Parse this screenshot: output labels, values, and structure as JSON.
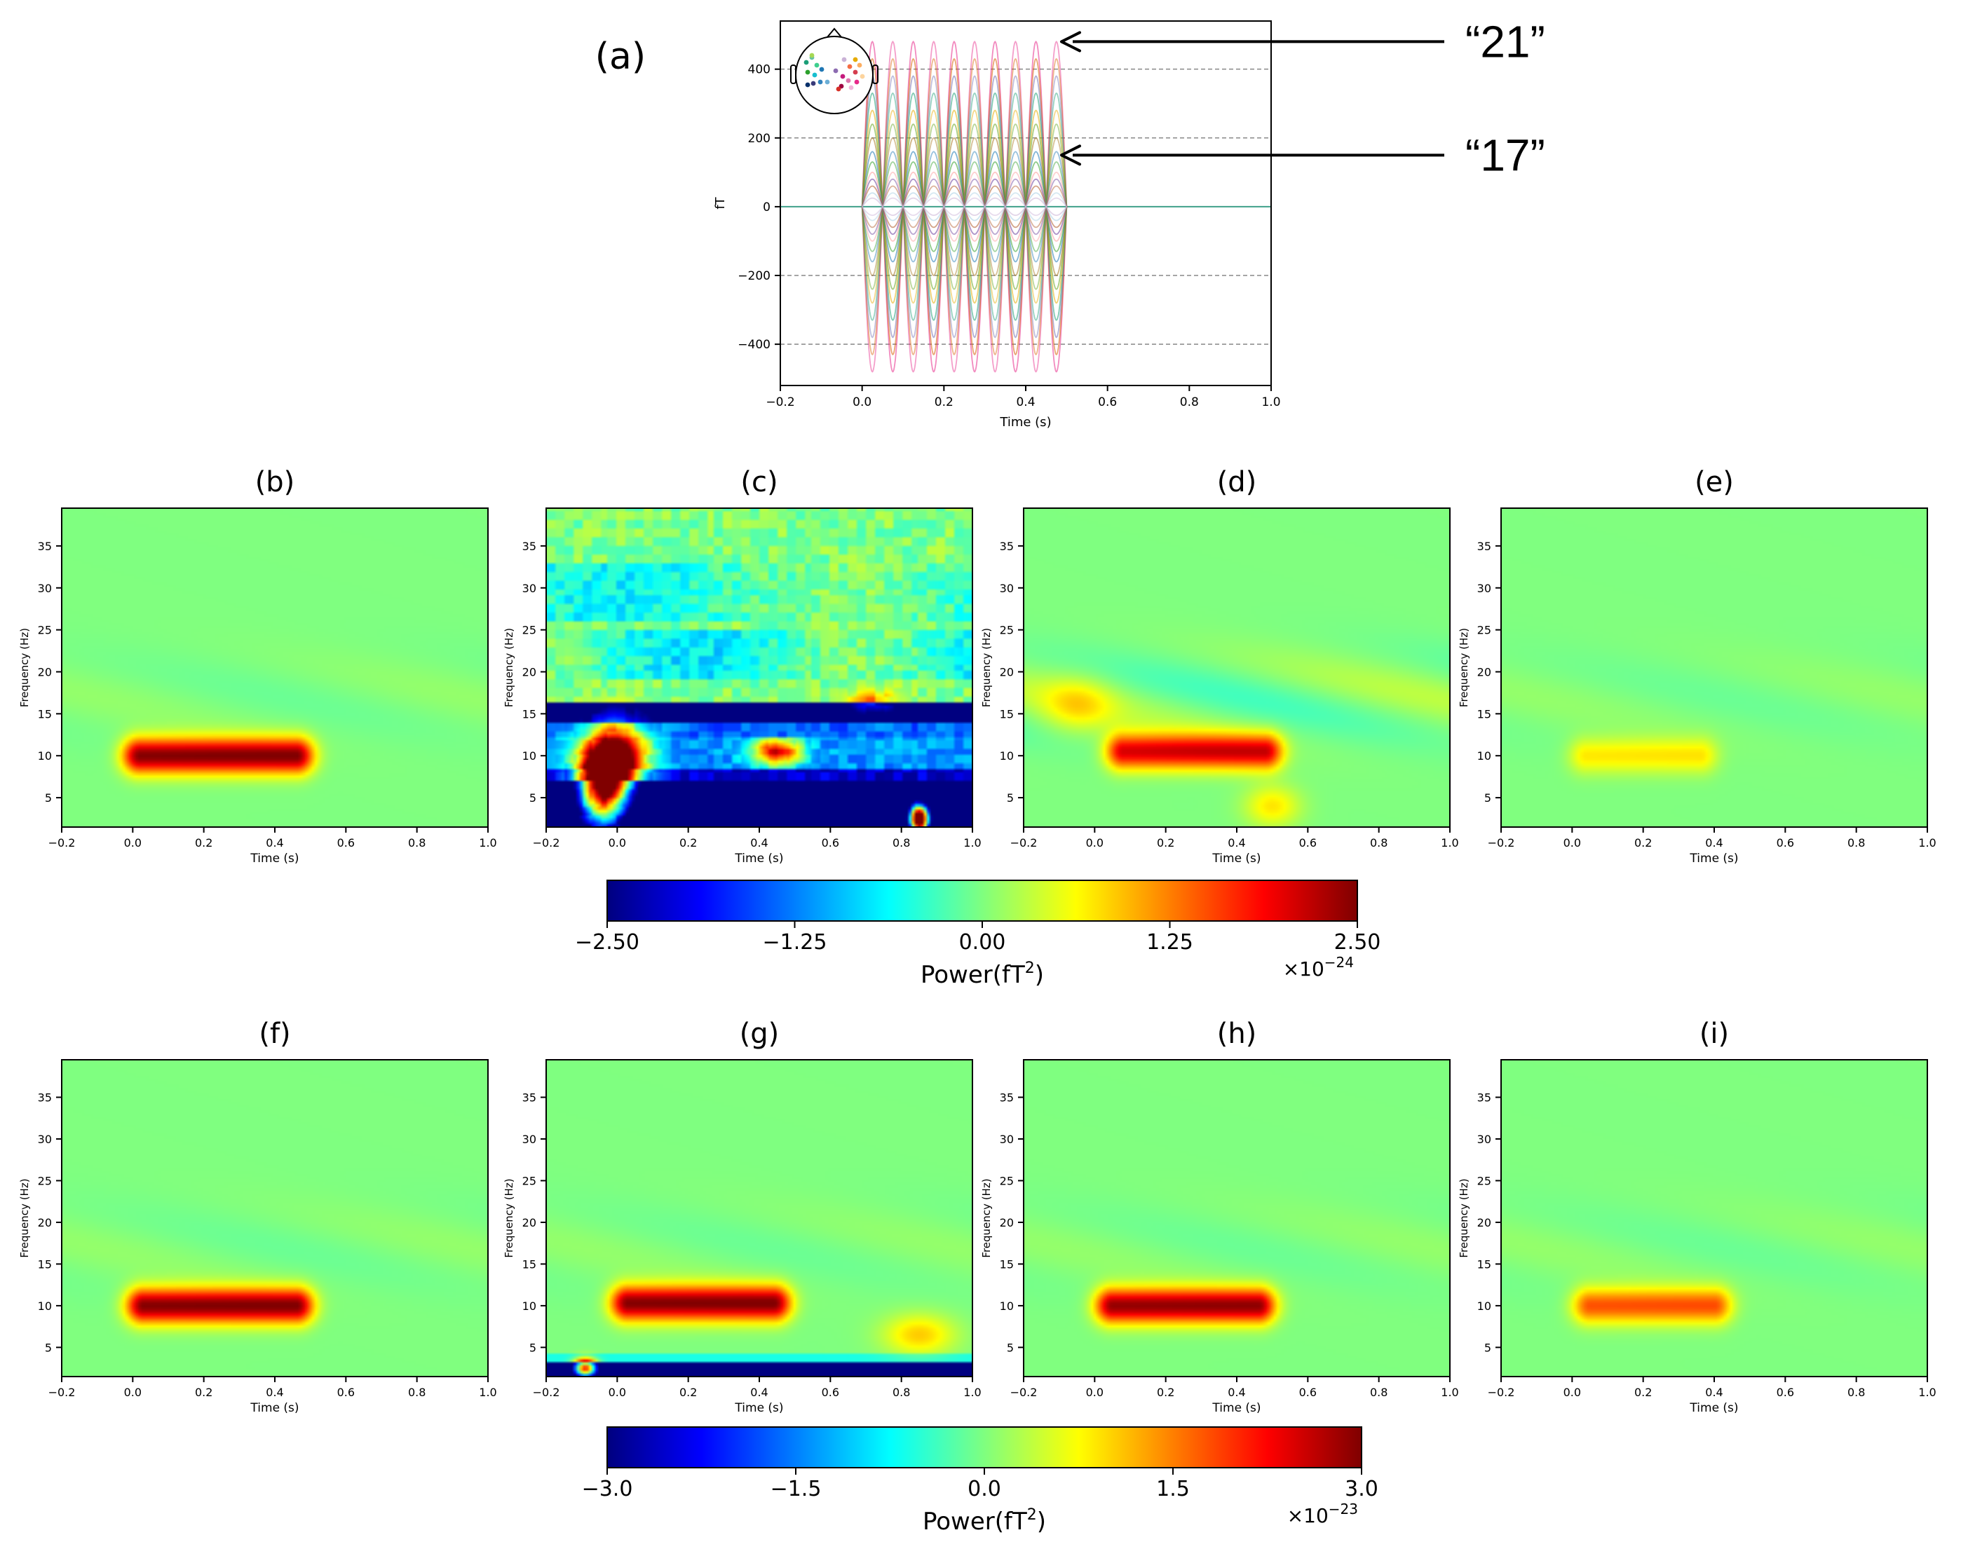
{
  "colors": {
    "jet": [
      "#00007f",
      "#0000ff",
      "#007fff",
      "#00ffff",
      "#7fff7f",
      "#ffff00",
      "#ff7f00",
      "#ff0000",
      "#7f0000"
    ],
    "signal": [
      "#e7298a",
      "#d95f02",
      "#7570b3",
      "#1b9e77",
      "#e6ab02",
      "#66a61e",
      "#a6761d",
      "#1f78b4",
      "#33a02c",
      "#fb9a99",
      "#6a3d9a",
      "#b15928",
      "#a6cee3",
      "#cab2d6"
    ],
    "arrow": "#000000"
  },
  "chart_data": [
    {
      "id": "a",
      "panel_label": "(a)",
      "type": "line",
      "description_free": true,
      "xlabel": "Time (s)",
      "ylabel": "fT",
      "xlim": [
        -0.2,
        1.0
      ],
      "ylim": [
        -520,
        540
      ],
      "xticks": [
        -0.2,
        0.0,
        0.2,
        0.4,
        0.6,
        0.8,
        1.0
      ],
      "xtick_labels": [
        "−0.2",
        "0.0",
        "0.2",
        "0.4",
        "0.6",
        "0.8",
        "1.0"
      ],
      "yticks": [
        -400,
        -200,
        0,
        200,
        400
      ],
      "ytick_labels": [
        "−400",
        "−200",
        "0",
        "200",
        "400"
      ],
      "grid_y": [
        -400,
        -200,
        200,
        400
      ],
      "signal": {
        "frequency_hz": 10,
        "t_start": 0.0,
        "t_end": 0.5,
        "amplitudes": [
          480,
          430,
          380,
          330,
          280,
          240,
          200,
          160,
          130,
          100,
          80,
          60,
          40,
          25
        ]
      },
      "annotations": [
        {
          "text": "“21”",
          "target_y": 480
        },
        {
          "text": "“17”",
          "target_y": 150
        }
      ]
    },
    {
      "id": "b",
      "panel_label": "(b)",
      "type": "heatmap",
      "row": 1,
      "xlabel": "Time (s)",
      "ylabel": "Frequency (Hz)",
      "xlim": [
        -0.2,
        1.0
      ],
      "ylim": [
        1.5,
        39.5
      ],
      "xticks": [
        -0.2,
        0.0,
        0.2,
        0.4,
        0.6,
        0.8,
        1.0
      ],
      "xtick_labels": [
        "−0.2",
        "0.0",
        "0.2",
        "0.4",
        "0.6",
        "0.8",
        "1.0"
      ],
      "yticks": [
        5,
        10,
        15,
        20,
        25,
        30,
        35
      ],
      "ytick_labels": [
        "5",
        "10",
        "15",
        "20",
        "25",
        "30",
        "35"
      ],
      "value_range": [
        -2.5e-24,
        2.5e-24
      ],
      "blobs": [
        {
          "t0": 0.02,
          "t1": 0.46,
          "f": 10,
          "peak": 2.5e-24
        }
      ]
    },
    {
      "id": "c",
      "panel_label": "(c)",
      "type": "heatmap",
      "row": 1,
      "xlabel": "Time (s)",
      "ylabel": "Frequency (Hz)",
      "xlim": [
        -0.2,
        1.0
      ],
      "ylim": [
        1.5,
        39.5
      ],
      "xticks": [
        -0.2,
        0.0,
        0.2,
        0.4,
        0.6,
        0.8,
        1.0
      ],
      "xtick_labels": [
        "−0.2",
        "0.0",
        "0.2",
        "0.4",
        "0.6",
        "0.8",
        "1.0"
      ],
      "yticks": [
        5,
        10,
        15,
        20,
        25,
        30,
        35
      ],
      "ytick_labels": [
        "5",
        "10",
        "15",
        "20",
        "25",
        "30",
        "35"
      ],
      "value_range": [
        -2.5e-24,
        2.5e-24
      ],
      "noisy": true
    },
    {
      "id": "d",
      "panel_label": "(d)",
      "type": "heatmap",
      "row": 1,
      "xlabel": "Time (s)",
      "ylabel": "Frequency (Hz)",
      "xlim": [
        -0.2,
        1.0
      ],
      "ylim": [
        1.5,
        39.5
      ],
      "xticks": [
        -0.2,
        0.0,
        0.2,
        0.4,
        0.6,
        0.8,
        1.0
      ],
      "xtick_labels": [
        "−0.2",
        "0.0",
        "0.2",
        "0.4",
        "0.6",
        "0.8",
        "1.0"
      ],
      "yticks": [
        5,
        10,
        15,
        20,
        25,
        30,
        35
      ],
      "ytick_labels": [
        "5",
        "10",
        "15",
        "20",
        "25",
        "30",
        "35"
      ],
      "value_range": [
        -2.5e-24,
        2.5e-24
      ],
      "blobs": [
        {
          "t0": 0.08,
          "t1": 0.48,
          "f": 10.5,
          "peak": 2.1e-24
        }
      ]
    },
    {
      "id": "e",
      "panel_label": "(e)",
      "type": "heatmap",
      "row": 1,
      "xlabel": "Time (s)",
      "ylabel": "Frequency (Hz)",
      "xlim": [
        -0.2,
        1.0
      ],
      "ylim": [
        1.5,
        39.5
      ],
      "xticks": [
        -0.2,
        0.0,
        0.2,
        0.4,
        0.6,
        0.8,
        1.0
      ],
      "xtick_labels": [
        "−0.2",
        "0.0",
        "0.2",
        "0.4",
        "0.6",
        "0.8",
        "1.0"
      ],
      "yticks": [
        5,
        10,
        15,
        20,
        25,
        30,
        35
      ],
      "ytick_labels": [
        "5",
        "10",
        "15",
        "20",
        "25",
        "30",
        "35"
      ],
      "value_range": [
        -2.5e-24,
        2.5e-24
      ],
      "blobs": [
        {
          "t0": 0.04,
          "t1": 0.36,
          "f": 10,
          "peak": 7.5e-25
        }
      ]
    },
    {
      "id": "f",
      "panel_label": "(f)",
      "type": "heatmap",
      "row": 2,
      "xlabel": "Time (s)",
      "ylabel": "Frequency (Hz)",
      "xlim": [
        -0.2,
        1.0
      ],
      "ylim": [
        1.5,
        39.5
      ],
      "xticks": [
        -0.2,
        0.0,
        0.2,
        0.4,
        0.6,
        0.8,
        1.0
      ],
      "xtick_labels": [
        "−0.2",
        "0.0",
        "0.2",
        "0.4",
        "0.6",
        "0.8",
        "1.0"
      ],
      "yticks": [
        5,
        10,
        15,
        20,
        25,
        30,
        35
      ],
      "ytick_labels": [
        "5",
        "10",
        "15",
        "20",
        "25",
        "30",
        "35"
      ],
      "value_range": [
        -3e-23,
        3e-23
      ],
      "blobs": [
        {
          "t0": 0.03,
          "t1": 0.46,
          "f": 10,
          "peak": 3e-23
        }
      ]
    },
    {
      "id": "g",
      "panel_label": "(g)",
      "type": "heatmap",
      "row": 2,
      "xlabel": "Time (s)",
      "ylabel": "Frequency (Hz)",
      "xlim": [
        -0.2,
        1.0
      ],
      "ylim": [
        1.5,
        39.5
      ],
      "xticks": [
        -0.2,
        0.0,
        0.2,
        0.4,
        0.6,
        0.8,
        1.0
      ],
      "xtick_labels": [
        "−0.2",
        "0.0",
        "0.2",
        "0.4",
        "0.6",
        "0.8",
        "1.0"
      ],
      "yticks": [
        5,
        10,
        15,
        20,
        25,
        30,
        35
      ],
      "ytick_labels": [
        "5",
        "10",
        "15",
        "20",
        "25",
        "30",
        "35"
      ],
      "value_range": [
        -3e-23,
        3e-23
      ],
      "blobs": [
        {
          "t0": 0.03,
          "t1": 0.44,
          "f": 10.3,
          "peak": 3e-23
        }
      ],
      "low_band": true
    },
    {
      "id": "h",
      "panel_label": "(h)",
      "type": "heatmap",
      "row": 2,
      "xlabel": "Time (s)",
      "ylabel": "Frequency (Hz)",
      "xlim": [
        -0.2,
        1.0
      ],
      "ylim": [
        1.5,
        39.5
      ],
      "xticks": [
        -0.2,
        0.0,
        0.2,
        0.4,
        0.6,
        0.8,
        1.0
      ],
      "xtick_labels": [
        "−0.2",
        "0.0",
        "0.2",
        "0.4",
        "0.6",
        "0.8",
        "1.0"
      ],
      "yticks": [
        5,
        10,
        15,
        20,
        25,
        30,
        35
      ],
      "ytick_labels": [
        "5",
        "10",
        "15",
        "20",
        "25",
        "30",
        "35"
      ],
      "value_range": [
        -3e-23,
        3e-23
      ],
      "blobs": [
        {
          "t0": 0.05,
          "t1": 0.46,
          "f": 10,
          "peak": 2.9e-23
        }
      ]
    },
    {
      "id": "i",
      "panel_label": "(i)",
      "type": "heatmap",
      "row": 2,
      "xlabel": "Time (s)",
      "ylabel": "Frequency (Hz)",
      "xlim": [
        -0.2,
        1.0
      ],
      "ylim": [
        1.5,
        39.5
      ],
      "xticks": [
        -0.2,
        0.0,
        0.2,
        0.4,
        0.6,
        0.8,
        1.0
      ],
      "xtick_labels": [
        "−0.2",
        "0.0",
        "0.2",
        "0.4",
        "0.6",
        "0.8",
        "1.0"
      ],
      "yticks": [
        5,
        10,
        15,
        20,
        25,
        30,
        35
      ],
      "ytick_labels": [
        "5",
        "10",
        "15",
        "20",
        "25",
        "30",
        "35"
      ],
      "value_range": [
        -3e-23,
        3e-23
      ],
      "blobs": [
        {
          "t0": 0.05,
          "t1": 0.4,
          "f": 10,
          "peak": 1.8e-23
        }
      ]
    }
  ],
  "colorbars": [
    {
      "id": "cb1",
      "range": [
        -2.5,
        2.5
      ],
      "ticks": [
        -2.5,
        -1.25,
        0.0,
        1.25,
        2.5
      ],
      "tick_labels": [
        "−2.50",
        "−1.25",
        "0.00",
        "1.25",
        "2.50"
      ],
      "label": "Power(fT",
      "label_sup": "2",
      "label_end": ")",
      "offset_base": "×10",
      "offset_exp": "−24"
    },
    {
      "id": "cb2",
      "range": [
        -3.0,
        3.0
      ],
      "ticks": [
        -3.0,
        -1.5,
        0.0,
        1.5,
        3.0
      ],
      "tick_labels": [
        "−3.0",
        "−1.5",
        "0.0",
        "1.5",
        "3.0"
      ],
      "label": "Power(fT",
      "label_sup": "2",
      "label_end": ")",
      "offset_base": "×10",
      "offset_exp": "−23"
    }
  ]
}
